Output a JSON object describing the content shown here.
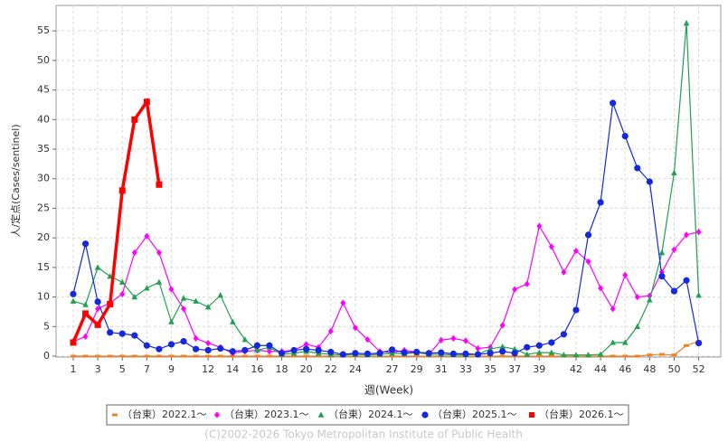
{
  "chart_data": {
    "type": "line",
    "ylabel": "人/定点(Cases/sentinel)",
    "xlabel": "週(Week)",
    "footer": "(C)2002-2026 Tokyo Metropolitan Institute of Public Health",
    "xlim": [
      -0.4,
      53.8
    ],
    "ylim": [
      -0.15,
      59.3
    ],
    "xticks": [
      1,
      3,
      5,
      7,
      9,
      12,
      14,
      16,
      18,
      20,
      22,
      24,
      27,
      29,
      31,
      33,
      35,
      37,
      39,
      42,
      44,
      46,
      48,
      50,
      52
    ],
    "yticks": [
      0,
      5,
      10,
      15,
      20,
      25,
      30,
      35,
      40,
      45,
      50,
      55
    ],
    "grid": true,
    "legend": "bottom",
    "x": [
      1,
      2,
      3,
      4,
      5,
      6,
      7,
      8,
      9,
      10,
      11,
      12,
      13,
      14,
      15,
      16,
      17,
      18,
      19,
      20,
      21,
      22,
      23,
      24,
      25,
      26,
      27,
      28,
      29,
      30,
      31,
      32,
      33,
      34,
      35,
      36,
      37,
      38,
      39,
      40,
      41,
      42,
      43,
      44,
      45,
      46,
      47,
      48,
      49,
      50,
      51,
      52
    ],
    "series": [
      {
        "name": "（台東）2022.1～",
        "color": "#f08020",
        "marker": "dash",
        "values": [
          0,
          0,
          0,
          0,
          0,
          0,
          0,
          0,
          0,
          0,
          0,
          0,
          0,
          0,
          0,
          0,
          0,
          0,
          0,
          0,
          0,
          0,
          0,
          0,
          0,
          0,
          0,
          0,
          0,
          0,
          0,
          0,
          0,
          0,
          0,
          0,
          0,
          0,
          0,
          0,
          0,
          0,
          0,
          0,
          0,
          0,
          0,
          0.2,
          0.3,
          0.2,
          1.8,
          2.5
        ]
      },
      {
        "name": "（台東）2023.1～",
        "color": "#ff00ff",
        "marker": "diamond",
        "values": [
          2.5,
          3.3,
          8,
          9,
          10.5,
          17.5,
          20.3,
          17.5,
          11.3,
          8,
          3,
          2.2,
          1.5,
          0.5,
          0.8,
          1,
          0.8,
          0.8,
          1,
          2,
          1.5,
          4.2,
          9,
          4.8,
          2.8,
          0.8,
          0.6,
          1,
          0.7,
          0.3,
          2.7,
          3,
          2.6,
          1.3,
          1.5,
          5.2,
          11.3,
          12.2,
          22,
          18.5,
          14.2,
          17.8,
          16,
          11.5,
          8,
          13.7,
          10,
          10.2,
          14.2,
          18,
          20.5,
          21
        ]
      },
      {
        "name": "（台東）2024.1～",
        "color": "#20a050",
        "marker": "triangle",
        "values": [
          9.3,
          8.7,
          15,
          13.5,
          12.5,
          10,
          11.5,
          12.5,
          5.8,
          9.8,
          9.3,
          8.3,
          10.3,
          5.8,
          2.8,
          1,
          1.5,
          0.3,
          0.5,
          0.8,
          0.5,
          0.3,
          0.2,
          0.3,
          0.2,
          0.3,
          0.5,
          0.4,
          0.6,
          0.3,
          0.3,
          0.2,
          0.2,
          0.3,
          1.2,
          1.6,
          1.2,
          0.3,
          0.6,
          0.6,
          0.2,
          0.2,
          0.2,
          0.3,
          2.3,
          2.3,
          5,
          9.5,
          17.5,
          31,
          56.3,
          10.3
        ]
      },
      {
        "name": "（台東）2025.1～",
        "color": "#1428e0",
        "marker": "circle",
        "values": [
          10.5,
          19,
          9.2,
          4,
          3.8,
          3.5,
          1.8,
          1.2,
          2,
          2.5,
          1.2,
          1,
          1.3,
          0.8,
          1,
          1.8,
          1.8,
          0.5,
          1,
          1.2,
          1,
          0.7,
          0.3,
          0.5,
          0.4,
          0.5,
          1.1,
          0.6,
          0.7,
          0.5,
          0.6,
          0.4,
          0.4,
          0.3,
          0.5,
          0.8,
          0.5,
          1.5,
          1.8,
          2.3,
          3.7,
          7.8,
          20.5,
          26,
          42.8,
          37.2,
          31.8,
          29.5,
          13.5,
          11,
          12.8,
          2.2
        ]
      },
      {
        "name": "（台東）2026.1～",
        "color": "#ff0000",
        "marker": "square",
        "width": 3.5,
        "values": [
          2.3,
          7.2,
          5.3,
          8.8,
          28,
          40,
          43,
          29,
          null,
          null,
          null,
          null,
          null,
          null,
          null,
          null,
          null,
          null,
          null,
          null,
          null,
          null,
          null,
          null,
          null,
          null,
          null,
          null,
          null,
          null,
          null,
          null,
          null,
          null,
          null,
          null,
          null,
          null,
          null,
          null,
          null,
          null,
          null,
          null,
          null,
          null,
          null,
          null,
          null,
          null,
          null,
          null
        ]
      }
    ]
  }
}
